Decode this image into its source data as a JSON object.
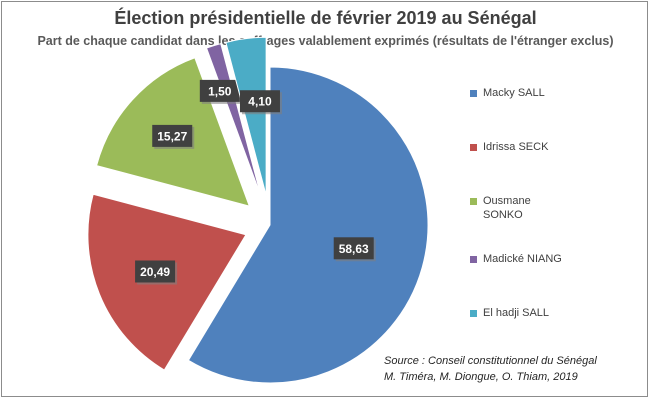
{
  "chart_data": {
    "type": "pie",
    "title": "Élection présidentielle de février 2019 au Sénégal",
    "subtitle": "Part de chaque candidat dans les suffrages valablement exprimés (résultats de l'étranger exclus)",
    "slices": [
      {
        "label": "Macky SALL",
        "value": 58.63,
        "value_label": "58,63",
        "color": "#4f81bd"
      },
      {
        "label": "Idrissa SECK",
        "value": 20.49,
        "value_label": "20,49",
        "color": "#c0504d"
      },
      {
        "label": "Ousmane SONKO",
        "value": 15.27,
        "value_label": "15,27",
        "color": "#9bbb59"
      },
      {
        "label": "Madické NIANG",
        "value": 1.5,
        "value_label": "1,50",
        "color": "#8064a2"
      },
      {
        "label": "El hadji SALL",
        "value": 4.1,
        "value_label": "4,10",
        "color": "#4bacc6"
      }
    ],
    "legend_position": "right",
    "exploded": true,
    "source_line1": "Source : Conseil constitutionnel du Sénégal",
    "source_line2": "M. Timéra, M. Diongue, O. Thiam, 2019"
  }
}
